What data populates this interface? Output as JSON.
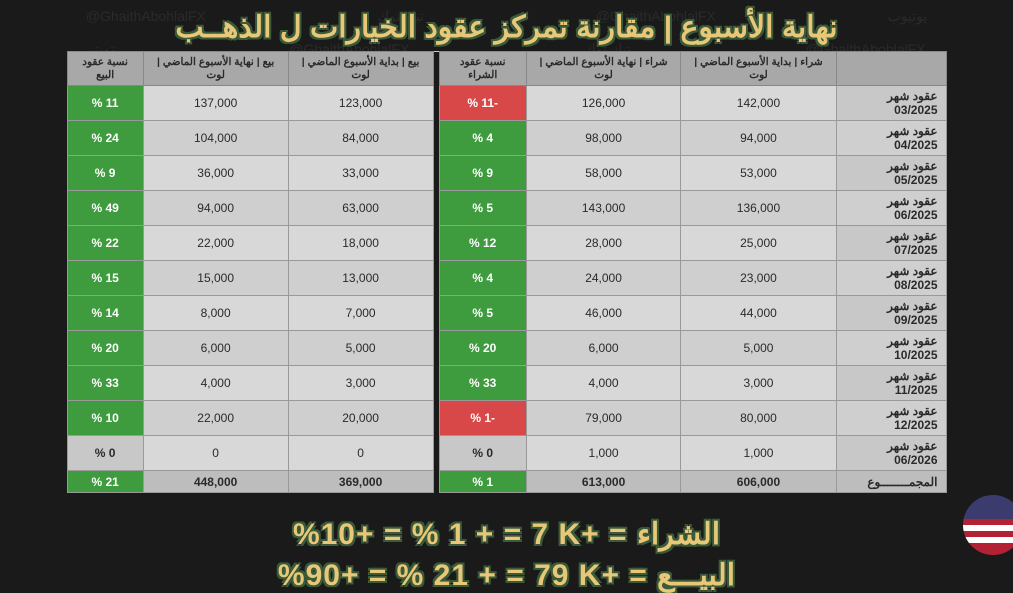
{
  "title": "نهاية الأسبوع | مقارنة تمركز عقود الخيارات ل الذهــب",
  "headers": {
    "contract": "",
    "buy_start": "شراء | بداية الأسبوع الماضي | لوت",
    "buy_end": "شراء | نهاية الأسبوع الماضي | لوت",
    "buy_pct": "نسبة عقود الشراء",
    "sell_start": "بيع | بداية الأسبوع الماضي | لوت",
    "sell_end": "بيع | نهاية الأسبوع الماضي | لوت",
    "sell_pct": "نسبة عقود البيع"
  },
  "rows": [
    {
      "label": "عقود شهر 03/2025",
      "bs": "142,000",
      "be": "126,000",
      "bp": "-11 %",
      "bpc": "red",
      "ss": "123,000",
      "se": "137,000",
      "sp": "11 %",
      "spc": "green"
    },
    {
      "label": "عقود شهر 04/2025",
      "bs": "94,000",
      "be": "98,000",
      "bp": "4 %",
      "bpc": "green",
      "ss": "84,000",
      "se": "104,000",
      "sp": "24 %",
      "spc": "green"
    },
    {
      "label": "عقود شهر 05/2025",
      "bs": "53,000",
      "be": "58,000",
      "bp": "9 %",
      "bpc": "green",
      "ss": "33,000",
      "se": "36,000",
      "sp": "9 %",
      "spc": "green"
    },
    {
      "label": "عقود شهر 06/2025",
      "bs": "136,000",
      "be": "143,000",
      "bp": "5 %",
      "bpc": "green",
      "ss": "63,000",
      "se": "94,000",
      "sp": "49 %",
      "spc": "green"
    },
    {
      "label": "عقود شهر 07/2025",
      "bs": "25,000",
      "be": "28,000",
      "bp": "12 %",
      "bpc": "green",
      "ss": "18,000",
      "se": "22,000",
      "sp": "22 %",
      "spc": "green"
    },
    {
      "label": "عقود شهر 08/2025",
      "bs": "23,000",
      "be": "24,000",
      "bp": "4 %",
      "bpc": "green",
      "ss": "13,000",
      "se": "15,000",
      "sp": "15 %",
      "spc": "green"
    },
    {
      "label": "عقود شهر 09/2025",
      "bs": "44,000",
      "be": "46,000",
      "bp": "5 %",
      "bpc": "green",
      "ss": "7,000",
      "se": "8,000",
      "sp": "14 %",
      "spc": "green"
    },
    {
      "label": "عقود شهر 10/2025",
      "bs": "5,000",
      "be": "6,000",
      "bp": "20 %",
      "bpc": "green",
      "ss": "5,000",
      "se": "6,000",
      "sp": "20 %",
      "spc": "green"
    },
    {
      "label": "عقود شهر 11/2025",
      "bs": "3,000",
      "be": "4,000",
      "bp": "33 %",
      "bpc": "green",
      "ss": "3,000",
      "se": "4,000",
      "sp": "33 %",
      "spc": "green"
    },
    {
      "label": "عقود شهر 12/2025",
      "bs": "80,000",
      "be": "79,000",
      "bp": "-1 %",
      "bpc": "red",
      "ss": "20,000",
      "se": "22,000",
      "sp": "10 %",
      "spc": "green"
    },
    {
      "label": "عقود شهر 06/2026",
      "bs": "1,000",
      "be": "1,000",
      "bp": "0 %",
      "bpc": "plain",
      "ss": "0",
      "se": "0",
      "sp": "0 %",
      "spc": "plain"
    }
  ],
  "total": {
    "label": "المجمــــــــوع",
    "bs": "606,000",
    "be": "613,000",
    "bp": "1 %",
    "bpc": "green",
    "ss": "369,000",
    "se": "448,000",
    "sp": "21 %",
    "spc": "green"
  },
  "summary1": "%10+ = % 1 + = 7 K+ = الشراء",
  "summary2": "%90+ = % 21 + = 79 K+ = البيـــع",
  "watermark": "@GhaithAbohlalFX",
  "wm_ar": "تيك توك - يوتيوب - تويتر",
  "colors": {
    "green": "#3e9b3e",
    "red": "#d84848",
    "gold": "#e8c878",
    "outline": "#3a5a3a",
    "bg": "#1a1a1a"
  }
}
